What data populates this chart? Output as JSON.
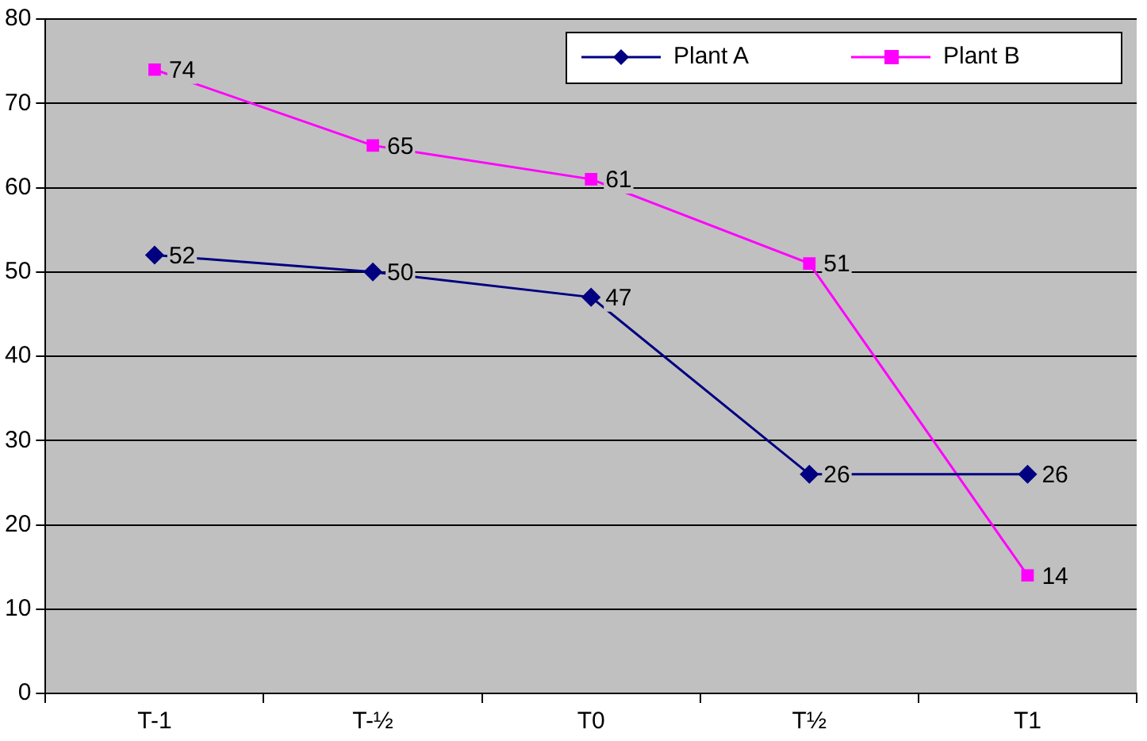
{
  "chart_data": {
    "type": "line",
    "categories": [
      "T-1",
      "T-½",
      "T0",
      "T½",
      "T1"
    ],
    "series": [
      {
        "name": "Plant A",
        "color": "#000080",
        "marker": "diamond",
        "values": [
          52,
          50,
          47,
          26,
          26
        ]
      },
      {
        "name": "Plant B",
        "color": "#ff00ff",
        "marker": "square",
        "values": [
          74,
          65,
          61,
          51,
          14
        ]
      }
    ],
    "ylim": [
      0,
      80
    ],
    "yticks": [
      0,
      10,
      20,
      30,
      40,
      50,
      60,
      70,
      80
    ],
    "grid": "y",
    "legend": "top right",
    "data_labels": true,
    "line_style": "solid"
  }
}
